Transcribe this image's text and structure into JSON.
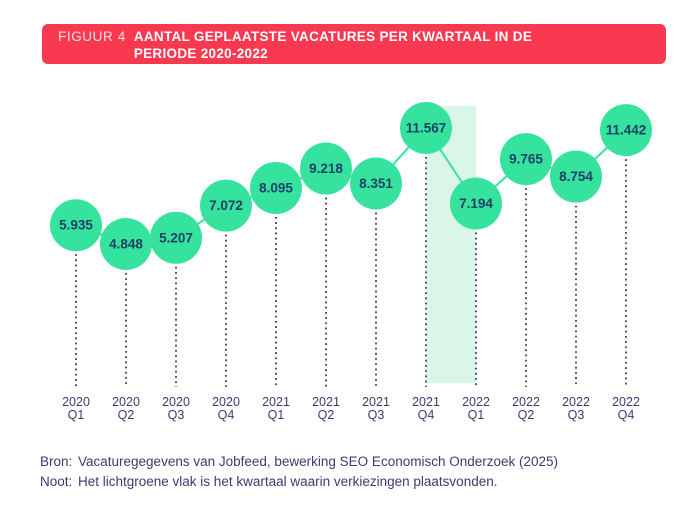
{
  "header": {
    "figure_label": "FIGUUR 4",
    "title_line1": "AANTAL GEPLAATSTE VACATURES PER KWARTAAL IN DE",
    "title_line2": "PERIODE 2020-2022"
  },
  "chart_data": {
    "type": "line",
    "title": "FIGUUR 4 AANTAL GEPLAATSTE VACATURES PER KWARTAAL IN DE PERIODE 2020-2022",
    "categories": [
      "2020 Q1",
      "2020 Q2",
      "2020 Q3",
      "2020 Q4",
      "2021 Q1",
      "2021 Q2",
      "2021 Q3",
      "2021 Q4",
      "2022 Q1",
      "2022 Q2",
      "2022 Q3",
      "2022 Q4"
    ],
    "values": [
      5935,
      4848,
      5207,
      7072,
      8095,
      9218,
      8351,
      11567,
      7194,
      9765,
      8754,
      11442
    ],
    "value_labels": [
      "5.935",
      "4.848",
      "5.207",
      "7.072",
      "8.095",
      "9.218",
      "8.351",
      "11.567",
      "7.194",
      "9.765",
      "8.754",
      "11.442"
    ],
    "xlabel": "",
    "ylabel": "",
    "show_axes": false,
    "grid": false,
    "legend": false,
    "marker_color": "#35e29e",
    "highlight_band": {
      "from": "2021 Q4",
      "to": "2022 Q1",
      "color": "#d9f6e8"
    }
  },
  "footer": {
    "source_label": "Bron:",
    "source_text": "Vacaturegegevens van Jobfeed, bewerking SEO Economisch Onderzoek (2025)",
    "note_label": "Noot:",
    "note_text": "Het lichtgroene vlak is het kwartaal waarin verkiezingen plaatsvonden."
  },
  "colors": {
    "accent_green": "#35e29e",
    "highlight_green": "#d9f6e8",
    "banner_red": "#f9394f",
    "text_navy": "#3b3b73",
    "value_text": "#1f4066",
    "background": "#ffffff"
  }
}
